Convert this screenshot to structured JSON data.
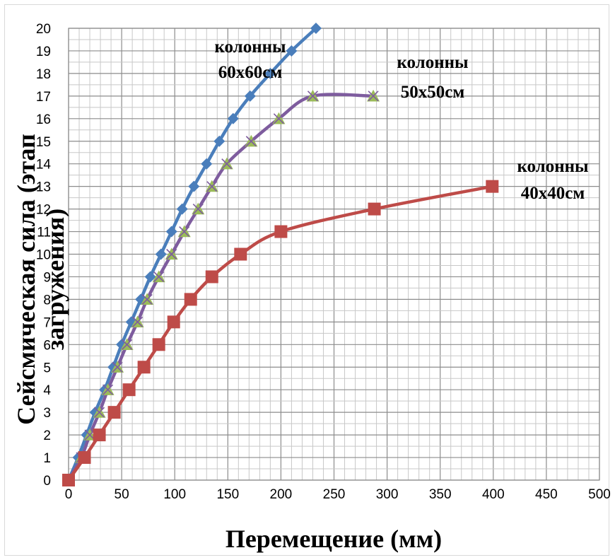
{
  "chart_data": {
    "type": "line",
    "xlabel": "Перемещение (мм)",
    "ylabel_lines": [
      "Сейсмическая сила (этап",
      "загружения)"
    ],
    "xlim": [
      0,
      500
    ],
    "ylim": [
      0,
      20
    ],
    "x_ticks": [
      0,
      50,
      100,
      150,
      200,
      250,
      300,
      350,
      400,
      450,
      500
    ],
    "y_ticks": [
      0,
      1,
      2,
      3,
      4,
      5,
      6,
      7,
      8,
      9,
      10,
      11,
      12,
      13,
      14,
      15,
      16,
      17,
      18,
      19,
      20
    ],
    "grid": true,
    "legend": "none",
    "series": [
      {
        "color": "#4a7ebb",
        "marker": "diamond",
        "points": [
          [
            0,
            0
          ],
          [
            9,
            1
          ],
          [
            17,
            2
          ],
          [
            25,
            3
          ],
          [
            34,
            4
          ],
          [
            42,
            5
          ],
          [
            50,
            6
          ],
          [
            59,
            7
          ],
          [
            68,
            8
          ],
          [
            77,
            9
          ],
          [
            87,
            10
          ],
          [
            97,
            11
          ],
          [
            107,
            12
          ],
          [
            118,
            13
          ],
          [
            130,
            14
          ],
          [
            142,
            15
          ],
          [
            155,
            16
          ],
          [
            171,
            17
          ],
          [
            190,
            18
          ],
          [
            210,
            19
          ],
          [
            233,
            20
          ]
        ]
      },
      {
        "color": "#7e5c9e",
        "marker_fill": "#9bbb59",
        "marker": "triangle-x",
        "points": [
          [
            0,
            0
          ],
          [
            12,
            1
          ],
          [
            20,
            2
          ],
          [
            29,
            3
          ],
          [
            37,
            4
          ],
          [
            46,
            5
          ],
          [
            55,
            6
          ],
          [
            65,
            7
          ],
          [
            74,
            8
          ],
          [
            85,
            9
          ],
          [
            97,
            10
          ],
          [
            109,
            11
          ],
          [
            122,
            12
          ],
          [
            135,
            13
          ],
          [
            149,
            14
          ],
          [
            172,
            15
          ],
          [
            198,
            16
          ],
          [
            230,
            17
          ],
          [
            287,
            17
          ]
        ]
      },
      {
        "color": "#be4b48",
        "marker": "square",
        "points": [
          [
            0,
            0
          ],
          [
            15,
            1
          ],
          [
            29,
            2
          ],
          [
            43,
            3
          ],
          [
            57,
            4
          ],
          [
            71,
            5
          ],
          [
            85,
            6
          ],
          [
            99,
            7
          ],
          [
            115,
            8
          ],
          [
            135,
            9
          ],
          [
            162,
            10
          ],
          [
            200,
            11
          ],
          [
            288,
            12
          ],
          [
            399,
            13
          ]
        ]
      }
    ],
    "annotations": [
      {
        "lines": [
          "колонны",
          "60х60см"
        ],
        "series": 0
      },
      {
        "lines": [
          "колонны",
          "50х50см"
        ],
        "series": 1
      },
      {
        "lines": [
          "колонны",
          "40х40см"
        ],
        "series": 2
      }
    ]
  }
}
